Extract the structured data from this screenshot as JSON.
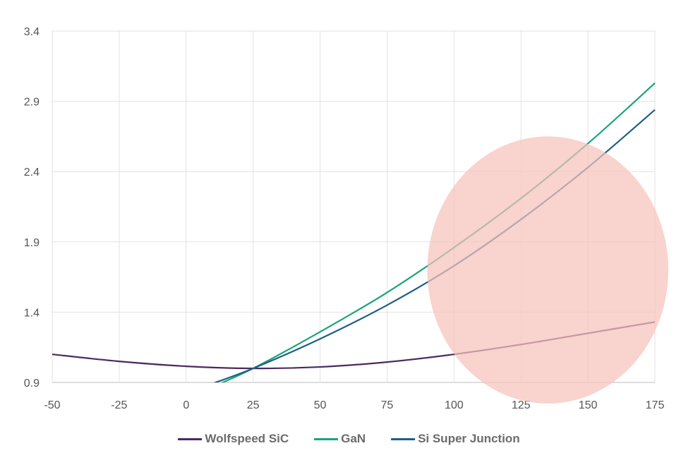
{
  "chart_data": {
    "type": "line",
    "title": "",
    "xlabel": "",
    "ylabel": "",
    "xlim": [
      -50,
      175
    ],
    "ylim": [
      0.9,
      3.4
    ],
    "x_ticks": [
      "-50",
      "-25",
      "0",
      "25",
      "50",
      "75",
      "100",
      "125",
      "150",
      "175"
    ],
    "y_ticks": [
      "0.9",
      "1.4",
      "1.9",
      "2.4",
      "2.9",
      "3.4"
    ],
    "grid": true,
    "legend_position": "bottom",
    "series": [
      {
        "name": "Wolfspeed SiC",
        "color": "#4b2a5e",
        "x": [
          -50,
          -25,
          0,
          25,
          50,
          75,
          100,
          125,
          150,
          175
        ],
        "y": [
          1.1,
          1.05,
          1.015,
          1.0,
          1.01,
          1.045,
          1.1,
          1.17,
          1.25,
          1.33
        ]
      },
      {
        "name": "GaN",
        "color": "#1aa37a",
        "x": [
          10,
          25,
          50,
          75,
          100,
          125,
          150,
          175
        ],
        "y": [
          0.87,
          1.0,
          1.26,
          1.54,
          1.86,
          2.21,
          2.6,
          3.03
        ]
      },
      {
        "name": "Si Super Junction",
        "color": "#1e5f86",
        "x": [
          8,
          25,
          50,
          75,
          100,
          125,
          150,
          175
        ],
        "y": [
          0.88,
          1.0,
          1.21,
          1.45,
          1.73,
          2.06,
          2.43,
          2.84
        ]
      }
    ],
    "annotations": [
      {
        "type": "ellipse-highlight",
        "color": "#f7c2bb",
        "center": [
          135,
          1.7
        ],
        "radius_x": 45,
        "radius_y": 0.95
      }
    ]
  }
}
